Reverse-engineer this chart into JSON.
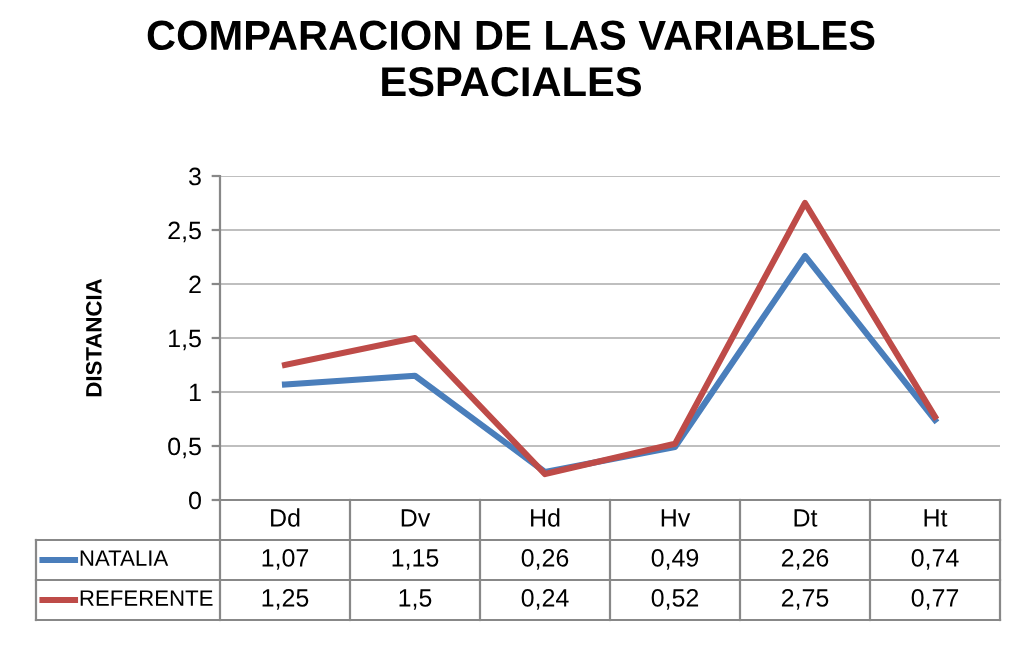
{
  "chart_data": {
    "type": "line",
    "title": "COMPARACION DE LAS VARIABLES\nESPACIALES",
    "ylabel": "DISTANCIA",
    "categories": [
      "Dd",
      "Dv",
      "Hd",
      "Hv",
      "Dt",
      "Ht"
    ],
    "series": [
      {
        "name": "NATALIA",
        "color": "#4a7ebb",
        "values": [
          1.07,
          1.15,
          0.26,
          0.49,
          2.26,
          0.74
        ],
        "value_labels": [
          "1,07",
          "1,15",
          "0,26",
          "0,49",
          "2,26",
          "0,74"
        ]
      },
      {
        "name": "REFERENTE",
        "color": "#be4b48",
        "values": [
          1.25,
          1.5,
          0.24,
          0.52,
          2.75,
          0.77
        ],
        "value_labels": [
          "1,25",
          "1,5",
          "0,24",
          "0,52",
          "2,75",
          "0,77"
        ]
      }
    ],
    "ylim": [
      0,
      3
    ],
    "yticks": [
      0,
      {
        "value": 0.5,
        "label": "0,5"
      },
      1,
      {
        "value": 1.5,
        "label": "1,5"
      },
      2,
      {
        "value": 2.5,
        "label": "2,5"
      },
      3
    ],
    "grid": "y",
    "legend": "bottom",
    "marker": "none",
    "line_style": "solid"
  }
}
